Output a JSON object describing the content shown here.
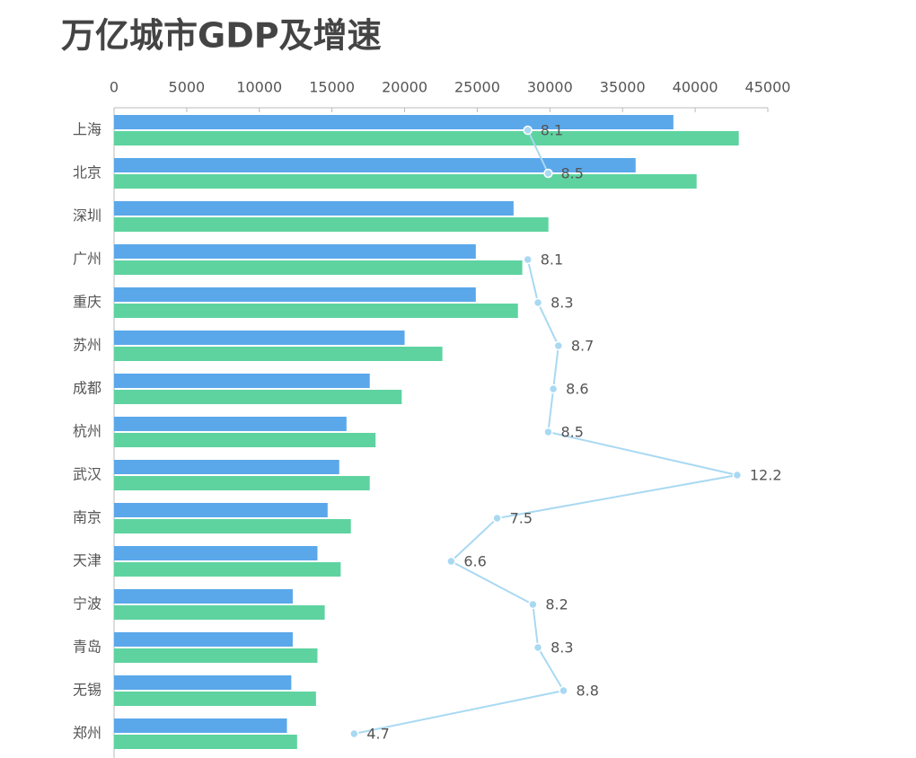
{
  "chart_data": {
    "type": "bar",
    "orientation": "horizontal",
    "title": "万亿城市GDP及增速",
    "categories": [
      "上海",
      "北京",
      "深圳",
      "广州",
      "重庆",
      "苏州",
      "成都",
      "杭州",
      "武汉",
      "南京",
      "天津",
      "宁波",
      "青岛",
      "无锡",
      "郑州"
    ],
    "series": [
      {
        "color": "#5aa8ea",
        "values": [
          38500,
          35900,
          27500,
          24900,
          24900,
          20000,
          17600,
          16000,
          15500,
          14700,
          14000,
          12300,
          12300,
          12200,
          11900
        ]
      },
      {
        "color": "#5ed3a0",
        "values": [
          43000,
          40100,
          29900,
          28100,
          27800,
          22600,
          19800,
          18000,
          17600,
          16300,
          15600,
          14500,
          14000,
          13900,
          12600
        ]
      },
      {
        "type": "line",
        "axis": "x2",
        "color": "#a9d9f2",
        "values": [
          8.1,
          8.5,
          null,
          8.1,
          8.3,
          8.7,
          8.6,
          8.5,
          12.2,
          7.5,
          6.6,
          8.2,
          8.3,
          8.8,
          4.7
        ]
      }
    ],
    "xlim": [
      0,
      45000
    ],
    "xticks": [
      0,
      5000,
      10000,
      15000,
      20000,
      25000,
      30000,
      35000,
      40000,
      45000
    ],
    "x2lim": [
      0,
      12.8
    ]
  }
}
